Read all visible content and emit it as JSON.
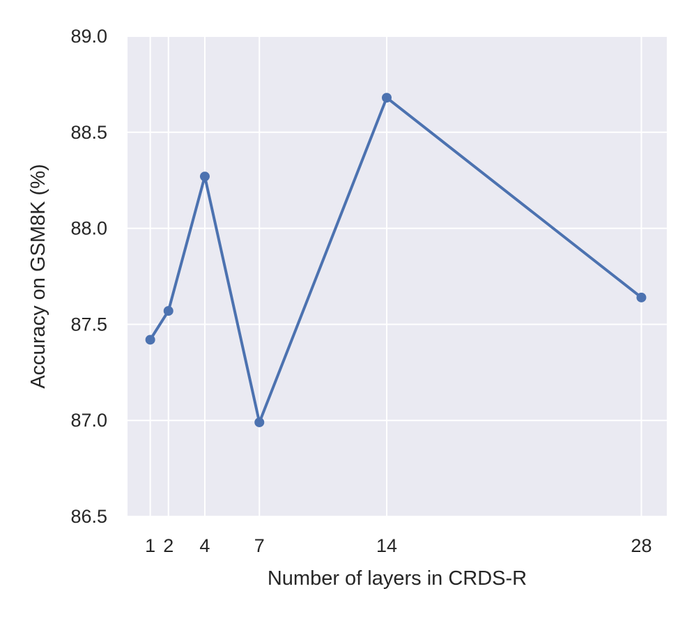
{
  "chart_data": {
    "type": "line",
    "title": "",
    "xlabel": "Number of layers in CRDS-R",
    "ylabel": "Accuracy on GSM8K (%)",
    "x": [
      1,
      2,
      4,
      7,
      14,
      28
    ],
    "xticks": [
      1,
      2,
      4,
      7,
      14,
      28
    ],
    "xlim": [
      -0.25,
      29.4
    ],
    "ylim": [
      86.5,
      89.0
    ],
    "yticks": [
      86.5,
      87.0,
      87.5,
      88.0,
      88.5,
      89.0
    ],
    "ytick_labels": [
      "86.5",
      "87.0",
      "87.5",
      "88.0",
      "88.5",
      "89.0"
    ],
    "grid": true,
    "series": [
      {
        "values": [
          87.42,
          87.57,
          88.27,
          86.99,
          88.68,
          87.64
        ],
        "color": "#4c72b0",
        "marker": "circle"
      }
    ],
    "background_color": "#eaeaf2",
    "grid_color": "#ffffff"
  }
}
